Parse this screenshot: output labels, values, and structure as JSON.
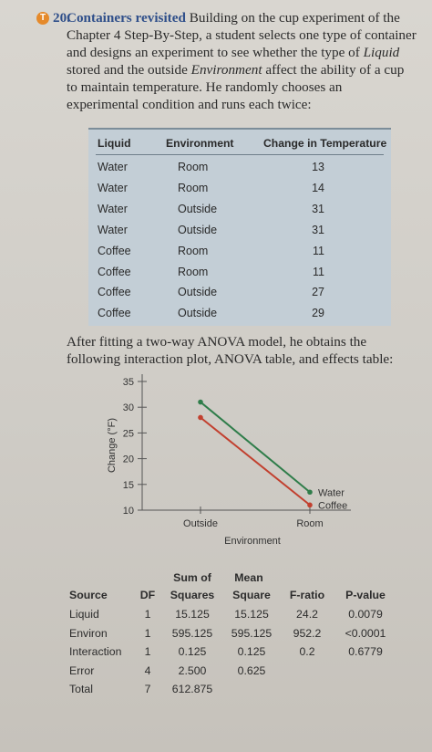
{
  "problem": {
    "badge": "T",
    "number": "20.",
    "title": "Containers revisited",
    "seg1": " Building on the cup experiment of the Chapter 4 Step-By-Step, a student selects one type of container and designs an experiment to see whether the type of ",
    "italic1": "Liquid",
    "seg2": " stored and the outside ",
    "italic2": "Environment",
    "seg3": " affect the ability of a cup to maintain temperature. He randomly chooses an experimental condition and runs each twice:"
  },
  "data_table": {
    "headers": [
      "Liquid",
      "Environment",
      "Change in Temperature"
    ],
    "rows": [
      [
        "Water",
        "Room",
        "13"
      ],
      [
        "Water",
        "Room",
        "14"
      ],
      [
        "Water",
        "Outside",
        "31"
      ],
      [
        "Water",
        "Outside",
        "31"
      ],
      [
        "Coffee",
        "Room",
        "11"
      ],
      [
        "Coffee",
        "Room",
        "11"
      ],
      [
        "Coffee",
        "Outside",
        "27"
      ],
      [
        "Coffee",
        "Outside",
        "29"
      ]
    ]
  },
  "paragraph": "After fitting a two-way ANOVA model, he obtains the following interaction plot, ANOVA table, and effects table:",
  "chart_data": {
    "type": "line",
    "categories": [
      "Outside",
      "Room"
    ],
    "series": [
      {
        "name": "Water",
        "values": [
          31,
          13.5
        ],
        "color": "#2f7d4a"
      },
      {
        "name": "Coffee",
        "values": [
          28,
          11
        ],
        "color": "#c2402f"
      }
    ],
    "xlabel": "Environment",
    "ylabel": "Change (°F)",
    "ylim": [
      10,
      35
    ],
    "yticks": [
      "10",
      "15",
      "20",
      "25",
      "30",
      "35"
    ],
    "legend": "right"
  },
  "anova": {
    "header_top": [
      "Sum of",
      "Mean"
    ],
    "headers": [
      "Source",
      "DF",
      "Squares",
      "Square",
      "F-ratio",
      "P-value"
    ],
    "rows": [
      [
        "Liquid",
        "1",
        "15.125",
        "15.125",
        "24.2",
        "0.0079"
      ],
      [
        "Environ",
        "1",
        "595.125",
        "595.125",
        "952.2",
        "<0.0001"
      ],
      [
        "Interaction",
        "1",
        "0.125",
        "0.125",
        "0.2",
        "0.6779"
      ],
      [
        "Error",
        "4",
        "2.500",
        "0.625",
        "",
        ""
      ],
      [
        "Total",
        "7",
        "612.875",
        "",
        "",
        ""
      ]
    ]
  }
}
